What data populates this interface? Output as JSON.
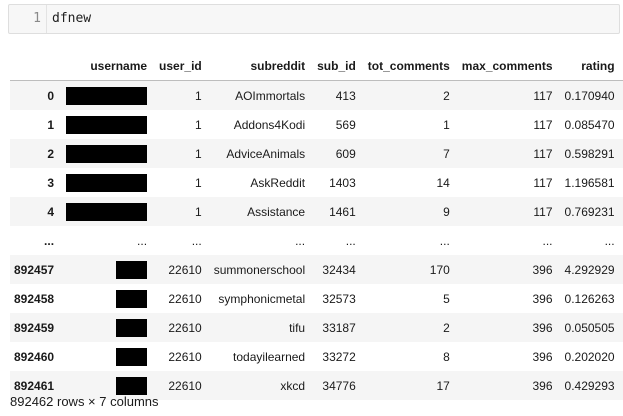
{
  "cell": {
    "line_number": "1",
    "code": "dfnew"
  },
  "table": {
    "index_header": "",
    "columns": [
      "username",
      "user_id",
      "subreddit",
      "sub_id",
      "tot_comments",
      "max_comments",
      "rating"
    ],
    "rows": [
      {
        "index": "0",
        "user_id": "1",
        "subreddit": "AOImmortals",
        "sub_id": "413",
        "tot_comments": "2",
        "max_comments": "117",
        "rating": "0.170940"
      },
      {
        "index": "1",
        "user_id": "1",
        "subreddit": "Addons4Kodi",
        "sub_id": "569",
        "tot_comments": "1",
        "max_comments": "117",
        "rating": "0.085470"
      },
      {
        "index": "2",
        "user_id": "1",
        "subreddit": "AdviceAnimals",
        "sub_id": "609",
        "tot_comments": "7",
        "max_comments": "117",
        "rating": "0.598291"
      },
      {
        "index": "3",
        "user_id": "1",
        "subreddit": "AskReddit",
        "sub_id": "1403",
        "tot_comments": "14",
        "max_comments": "117",
        "rating": "1.196581"
      },
      {
        "index": "4",
        "user_id": "1",
        "subreddit": "Assistance",
        "sub_id": "1461",
        "tot_comments": "9",
        "max_comments": "117",
        "rating": "0.769231"
      },
      {
        "index": "...",
        "username": "...",
        "user_id": "...",
        "subreddit": "...",
        "sub_id": "...",
        "tot_comments": "...",
        "max_comments": "...",
        "rating": "..."
      },
      {
        "index": "892457",
        "user_id": "22610",
        "subreddit": "summonerschool",
        "sub_id": "32434",
        "tot_comments": "170",
        "max_comments": "396",
        "rating": "4.292929"
      },
      {
        "index": "892458",
        "user_id": "22610",
        "subreddit": "symphonicmetal",
        "sub_id": "32573",
        "tot_comments": "5",
        "max_comments": "396",
        "rating": "0.126263"
      },
      {
        "index": "892459",
        "user_id": "22610",
        "subreddit": "tifu",
        "sub_id": "33187",
        "tot_comments": "2",
        "max_comments": "396",
        "rating": "0.050505"
      },
      {
        "index": "892460",
        "user_id": "22610",
        "subreddit": "todayilearned",
        "sub_id": "33272",
        "tot_comments": "8",
        "max_comments": "396",
        "rating": "0.202020"
      },
      {
        "index": "892461",
        "user_id": "22610",
        "subreddit": "xkcd",
        "sub_id": "34776",
        "tot_comments": "17",
        "max_comments": "396",
        "rating": "0.429293"
      }
    ]
  },
  "footer": {
    "shape_text": "892462 rows × 7 columns"
  }
}
